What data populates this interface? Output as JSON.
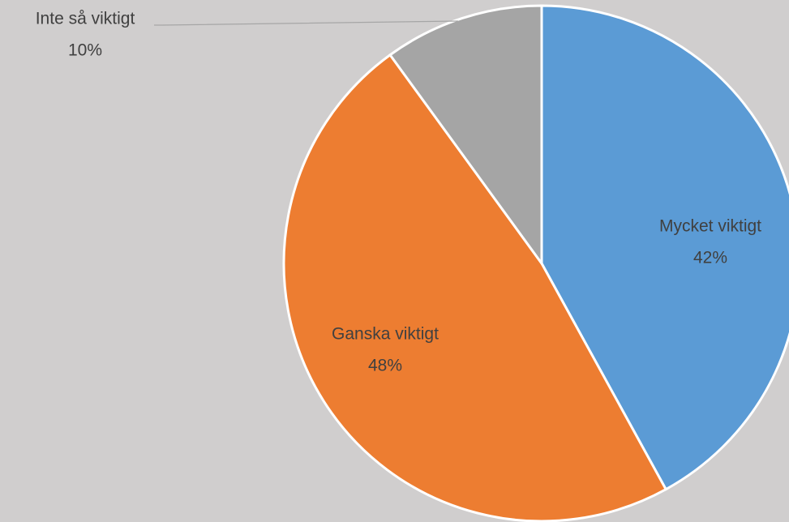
{
  "chart_data": {
    "type": "pie",
    "categories": [
      "Mycket viktigt",
      "Ganska viktigt",
      "Inte så viktigt"
    ],
    "values": [
      42,
      48,
      10
    ],
    "value_labels": [
      "42%",
      "48%",
      "10%"
    ],
    "colors": [
      "#5b9bd5",
      "#ed7d31",
      "#a5a5a5"
    ]
  }
}
